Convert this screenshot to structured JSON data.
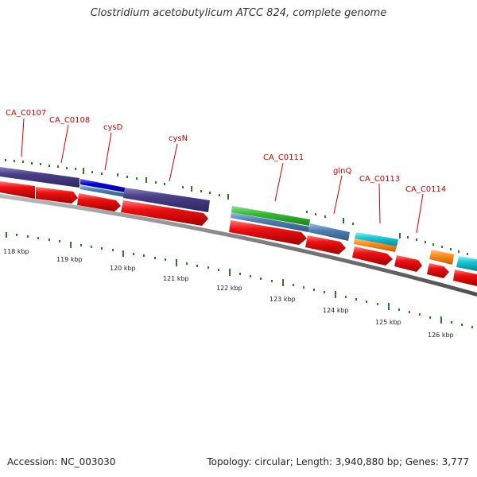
{
  "header": {
    "title": "Clostridium acetobutylicum ATCC 824, complete genome"
  },
  "footer": {
    "accession": "Accession: NC_003030",
    "summary": "Topology: circular; Length: 3,940,880 bp; Genes: 3,777"
  },
  "map": {
    "gene_labels": [
      "CA_C0107",
      "CA_C0108",
      "cysD",
      "cysN",
      "CA_C0111",
      "glnQ",
      "CA_C0113",
      "CA_C0114"
    ],
    "scale_labels": [
      "118 kbp",
      "119 kbp",
      "120 kbp",
      "121 kbp",
      "122 kbp",
      "123 kbp",
      "124 kbp",
      "125 kbp",
      "126 kbp"
    ],
    "colors": {
      "label_red": "#d40000",
      "cds_red": "#ee1111",
      "purple": "#4a3f88",
      "blue": "#0000dd",
      "steel_blue": "#4f7fb0",
      "green": "#33bb33",
      "cyan": "#17c7d6",
      "orange": "#ff8c1a",
      "backbone": "#7a7a7a",
      "tick_green": "#2a7a2a"
    }
  }
}
